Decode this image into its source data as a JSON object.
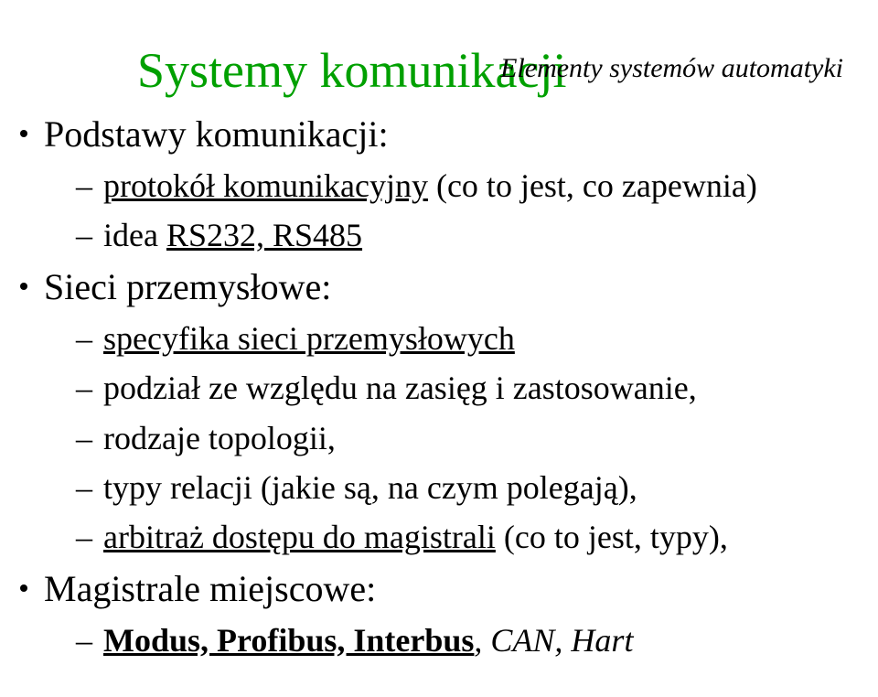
{
  "header": "Elementy systemów automatyki",
  "title": "Systemy komunikacji",
  "sections": [
    {
      "heading": "Podstawy komunikacji:",
      "items": [
        {
          "text": "protokół komunikacyjny (co to jest, co zapewnia)",
          "underlineStart": "protokół komunikacyjny",
          "rest": " (co to jest, co zapewnia)"
        },
        {
          "text": "idea ",
          "underlinePart": "RS232, RS485",
          "after": "",
          "prefixPlain": "idea "
        }
      ]
    },
    {
      "heading": "Sieci przemysłowe:",
      "items": [
        {
          "underlinePart": "specyfika sieci przemysłowych"
        },
        {
          "plain": "podział ze względu na zasięg i zastosowanie,"
        },
        {
          "plain": "rodzaje topologii,"
        },
        {
          "plain": "typy relacji (jakie są, na czym polegają),"
        },
        {
          "underlinePart": "arbitraż dostępu do magistrali",
          "after": " (co to jest, typy),"
        }
      ]
    },
    {
      "heading": "Magistrale miejscowe:",
      "items": [
        {
          "boldUnderline": "Modus, Profibus, Interbus",
          "italicAfter": ", CAN, Hart"
        }
      ]
    }
  ]
}
